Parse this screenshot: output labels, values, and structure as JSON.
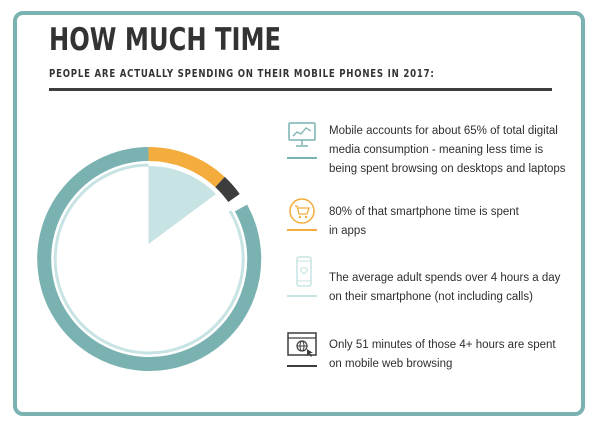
{
  "header": {
    "title": "HOW MUCH TIME",
    "subtitle": "PEOPLE ARE ACTUALLY SPENDING ON THEIR MOBILE PHONES IN 2017:"
  },
  "colors": {
    "frame": "#7ab2b2",
    "ring_teal": "#7ab2b2",
    "ring_light": "#c7e3e3",
    "wedge": "#c7e3e3",
    "orange": "#f4ad3d",
    "dark": "#3d3d3d",
    "text": "#2f2f2f"
  },
  "facts": [
    {
      "icon": "desktop-chart-icon",
      "underline_color": "#7ab2b2",
      "lines": [
        "Mobile accounts for about 65% of total digital",
        "media consumption - meaning less time is",
        "being spent browsing on desktops and laptops"
      ]
    },
    {
      "icon": "shopping-cart-icon",
      "underline_color": "#f4ad3d",
      "lines": [
        "80% of that smartphone time is spent",
        "in apps"
      ]
    },
    {
      "icon": "smartphone-heart-icon",
      "underline_color": "#c7e3e3",
      "lines": [
        "The average adult spends over 4 hours a day",
        "on their smartphone (not including calls)"
      ]
    },
    {
      "icon": "browser-globe-icon",
      "underline_color": "#3d3d3d",
      "lines": [
        "Only 51 minutes of those 4+ hours are spent",
        "on mobile web browsing"
      ]
    }
  ]
}
